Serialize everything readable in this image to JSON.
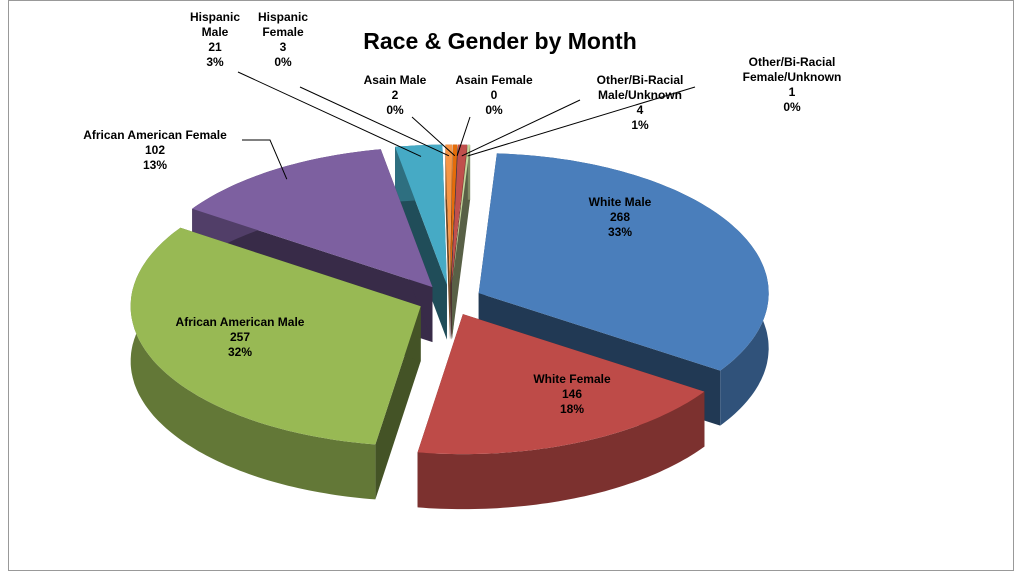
{
  "chart_data": {
    "type": "pie3d",
    "title": "Race & Gender by Month",
    "categories": [
      "White Male",
      "White Female",
      "African American Male",
      "African American Female",
      "Hispanic Male",
      "Hispanic Female",
      "Asain Male",
      "Asain Female",
      "Other/Bi-Racial Male/Unknown",
      "Other/Bi-Racial Female/Unknown"
    ],
    "values": [
      268,
      146,
      257,
      102,
      21,
      3,
      2,
      0,
      4,
      1
    ],
    "percent_labels": [
      "33%",
      "18%",
      "32%",
      "13%",
      "3%",
      "0%",
      "0%",
      "0%",
      "1%",
      "0%"
    ],
    "colors": [
      "#4a7ebb",
      "#be4b48",
      "#98b954",
      "#7d60a0",
      "#46aac5",
      "#f79646",
      "#e46c0a",
      "#4f81bd",
      "#c0504d",
      "#c3d69b"
    ]
  }
}
